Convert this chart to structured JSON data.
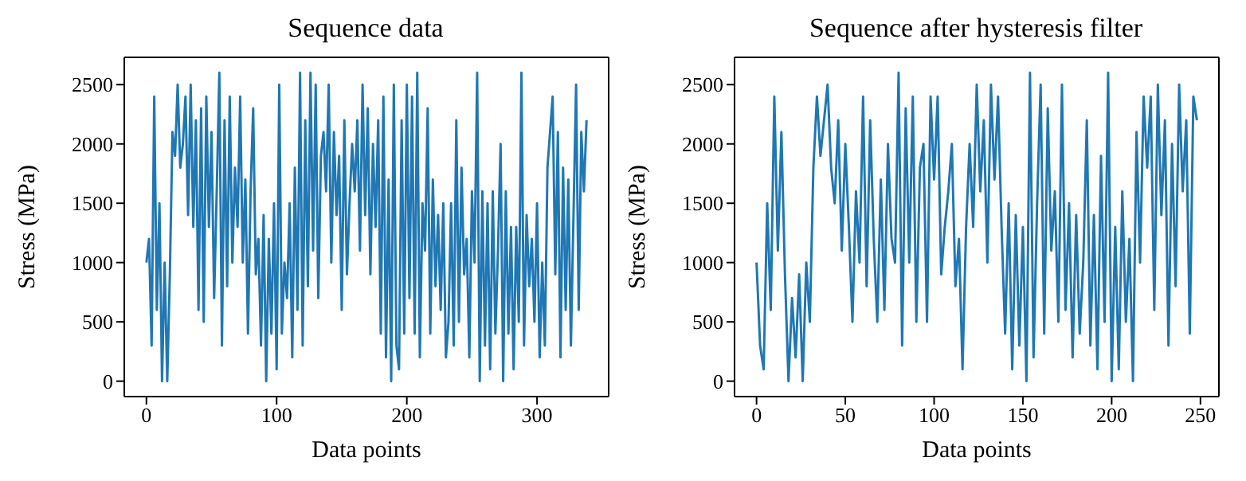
{
  "chart_data": [
    {
      "type": "line",
      "title": "Sequence data",
      "xlabel": "Data points",
      "ylabel": "Stress (MPa)",
      "color": "#1f77b4",
      "xlim": [
        -17,
        355
      ],
      "ylim": [
        -130,
        2730
      ],
      "xticks": [
        0,
        100,
        200,
        300
      ],
      "yticks": [
        0,
        500,
        1000,
        1500,
        2000,
        2500
      ],
      "x": [
        0,
        2,
        4,
        6,
        8,
        10,
        12,
        14,
        16,
        18,
        20,
        22,
        24,
        26,
        28,
        30,
        32,
        34,
        36,
        38,
        40,
        42,
        44,
        46,
        48,
        50,
        52,
        54,
        56,
        58,
        60,
        62,
        64,
        66,
        68,
        70,
        72,
        74,
        76,
        78,
        80,
        82,
        84,
        86,
        88,
        90,
        92,
        94,
        96,
        98,
        100,
        102,
        104,
        106,
        108,
        110,
        112,
        114,
        116,
        118,
        120,
        122,
        124,
        126,
        128,
        130,
        132,
        134,
        136,
        138,
        140,
        142,
        144,
        146,
        148,
        150,
        152,
        154,
        156,
        158,
        160,
        162,
        164,
        166,
        168,
        170,
        172,
        174,
        176,
        178,
        180,
        182,
        184,
        186,
        188,
        190,
        192,
        194,
        196,
        198,
        200,
        202,
        204,
        206,
        208,
        210,
        212,
        214,
        216,
        218,
        220,
        222,
        224,
        226,
        228,
        230,
        232,
        234,
        236,
        238,
        240,
        242,
        244,
        246,
        248,
        250,
        252,
        254,
        256,
        258,
        260,
        262,
        264,
        266,
        268,
        270,
        272,
        274,
        276,
        278,
        280,
        282,
        284,
        286,
        288,
        290,
        292,
        294,
        296,
        298,
        300,
        302,
        304,
        306,
        308,
        310,
        312,
        314,
        316,
        318,
        320,
        322,
        324,
        326,
        328,
        330,
        332,
        334,
        336,
        338
      ],
      "values": [
        1000,
        1200,
        300,
        2400,
        600,
        1500,
        0,
        1000,
        0,
        900,
        2100,
        1900,
        2500,
        1800,
        2000,
        2400,
        1400,
        2500,
        1300,
        2200,
        600,
        2300,
        500,
        2400,
        1300,
        2100,
        700,
        1600,
        2600,
        300,
        2200,
        800,
        2400,
        1000,
        1800,
        1300,
        2400,
        1000,
        1700,
        400,
        1600,
        2300,
        900,
        1200,
        300,
        1400,
        0,
        1200,
        400,
        1500,
        100,
        2500,
        400,
        1000,
        700,
        1500,
        200,
        1800,
        600,
        2600,
        300,
        2200,
        800,
        2600,
        1100,
        2500,
        700,
        1900,
        2100,
        1600,
        2500,
        1000,
        2100,
        1400,
        1900,
        600,
        2200,
        900,
        1500,
        2000,
        1600,
        2200,
        1100,
        2500,
        1400,
        2300,
        900,
        2000,
        1300,
        2200,
        400,
        2400,
        200,
        1700,
        0,
        2500,
        300,
        100,
        2200,
        400,
        2500,
        700,
        2400,
        400,
        2600,
        200,
        1500,
        1100,
        2300,
        400,
        1700,
        800,
        1400,
        600,
        1500,
        200,
        500,
        1500,
        300,
        2200,
        500,
        1800,
        900,
        1200,
        200,
        1600,
        1000,
        2600,
        0,
        1600,
        300,
        1500,
        100,
        1600,
        400,
        1100,
        2000,
        0,
        1600,
        400,
        1300,
        100,
        1300,
        500,
        2600,
        300,
        1400,
        800,
        1200,
        500,
        1500,
        200,
        1000,
        300,
        1800,
        2100,
        2400,
        900,
        2100,
        200,
        1800,
        600,
        1700,
        300,
        1400,
        2500,
        600,
        2100,
        1600,
        2200
      ]
    },
    {
      "type": "line",
      "title": "Sequence after hysteresis filter",
      "xlabel": "Data points",
      "ylabel": "Stress (MPa)",
      "color": "#1f77b4",
      "xlim": [
        -12.4,
        260.4
      ],
      "ylim": [
        -130,
        2730
      ],
      "xticks": [
        0,
        50,
        100,
        150,
        200,
        250
      ],
      "yticks": [
        0,
        500,
        1000,
        1500,
        2000,
        2500
      ],
      "x": [
        0,
        2,
        4,
        6,
        8,
        10,
        12,
        14,
        16,
        18,
        20,
        22,
        24,
        26,
        28,
        30,
        32,
        34,
        36,
        38,
        40,
        42,
        44,
        46,
        48,
        50,
        52,
        54,
        56,
        58,
        60,
        62,
        64,
        66,
        68,
        70,
        72,
        74,
        76,
        78,
        80,
        82,
        84,
        86,
        88,
        90,
        92,
        94,
        96,
        98,
        100,
        102,
        104,
        106,
        108,
        110,
        112,
        114,
        116,
        118,
        120,
        122,
        124,
        126,
        128,
        130,
        132,
        134,
        136,
        138,
        140,
        142,
        144,
        146,
        148,
        150,
        152,
        154,
        156,
        158,
        160,
        162,
        164,
        166,
        168,
        170,
        172,
        174,
        176,
        178,
        180,
        182,
        184,
        186,
        188,
        190,
        192,
        194,
        196,
        198,
        200,
        202,
        204,
        206,
        208,
        210,
        212,
        214,
        216,
        218,
        220,
        222,
        224,
        226,
        228,
        230,
        232,
        234,
        236,
        238,
        240,
        242,
        244,
        246,
        248
      ],
      "values": [
        1000,
        300,
        100,
        1500,
        600,
        2400,
        1100,
        2100,
        900,
        0,
        700,
        200,
        900,
        0,
        1000,
        500,
        1800,
        2400,
        1900,
        2200,
        2500,
        1800,
        1500,
        2200,
        1100,
        2000,
        1300,
        500,
        1600,
        1000,
        2400,
        800,
        2200,
        1200,
        500,
        1700,
        600,
        2000,
        1200,
        1000,
        2600,
        300,
        2300,
        1000,
        2400,
        500,
        1800,
        2000,
        500,
        2400,
        1700,
        2400,
        900,
        1300,
        1600,
        2000,
        800,
        1200,
        100,
        1300,
        2000,
        1300,
        2500,
        1600,
        2200,
        1000,
        2500,
        1700,
        2400,
        1300,
        400,
        1500,
        100,
        1400,
        300,
        1300,
        0,
        2600,
        200,
        1500,
        2500,
        400,
        2300,
        1100,
        1600,
        500,
        2500,
        600,
        1500,
        200,
        1400,
        400,
        1000,
        2200,
        300,
        1400,
        100,
        1900,
        500,
        2600,
        0,
        1300,
        100,
        1600,
        500,
        1200,
        0,
        2100,
        1000,
        2400,
        1800,
        2400,
        600,
        2500,
        1400,
        2200,
        300,
        2000,
        800,
        2500,
        1600,
        2200,
        400,
        2400,
        2200
      ]
    }
  ]
}
